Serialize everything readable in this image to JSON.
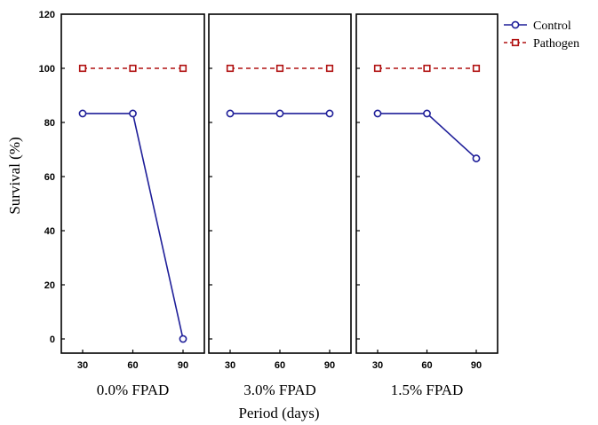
{
  "chart_data": {
    "type": "line",
    "ylabel": "Survival (%)",
    "xlabel": "Period (days)",
    "ylim": [
      0,
      120
    ],
    "yticks": [
      0,
      20,
      40,
      60,
      80,
      100,
      120
    ],
    "x": [
      30,
      60,
      90
    ],
    "grid": false,
    "legend_position": "top-right",
    "legend": [
      {
        "name": "Control",
        "color": "#1f1f99",
        "marker": "circle",
        "line": "solid"
      },
      {
        "name": "Pathogen",
        "color": "#b01010",
        "marker": "square",
        "line": "dashed"
      }
    ],
    "panels": [
      {
        "label": "0.0% FPAD",
        "series": [
          {
            "name": "Control",
            "values": [
              83.3,
              83.3,
              0
            ]
          },
          {
            "name": "Pathogen",
            "values": [
              100,
              100,
              100
            ]
          }
        ]
      },
      {
        "label": "3.0% FPAD",
        "series": [
          {
            "name": "Control",
            "values": [
              83.3,
              83.3,
              83.3
            ]
          },
          {
            "name": "Pathogen",
            "values": [
              100,
              100,
              100
            ]
          }
        ]
      },
      {
        "label": "1.5% FPAD",
        "series": [
          {
            "name": "Control",
            "values": [
              83.3,
              83.3,
              66.7
            ]
          },
          {
            "name": "Pathogen",
            "values": [
              100,
              100,
              100
            ]
          }
        ]
      }
    ]
  }
}
